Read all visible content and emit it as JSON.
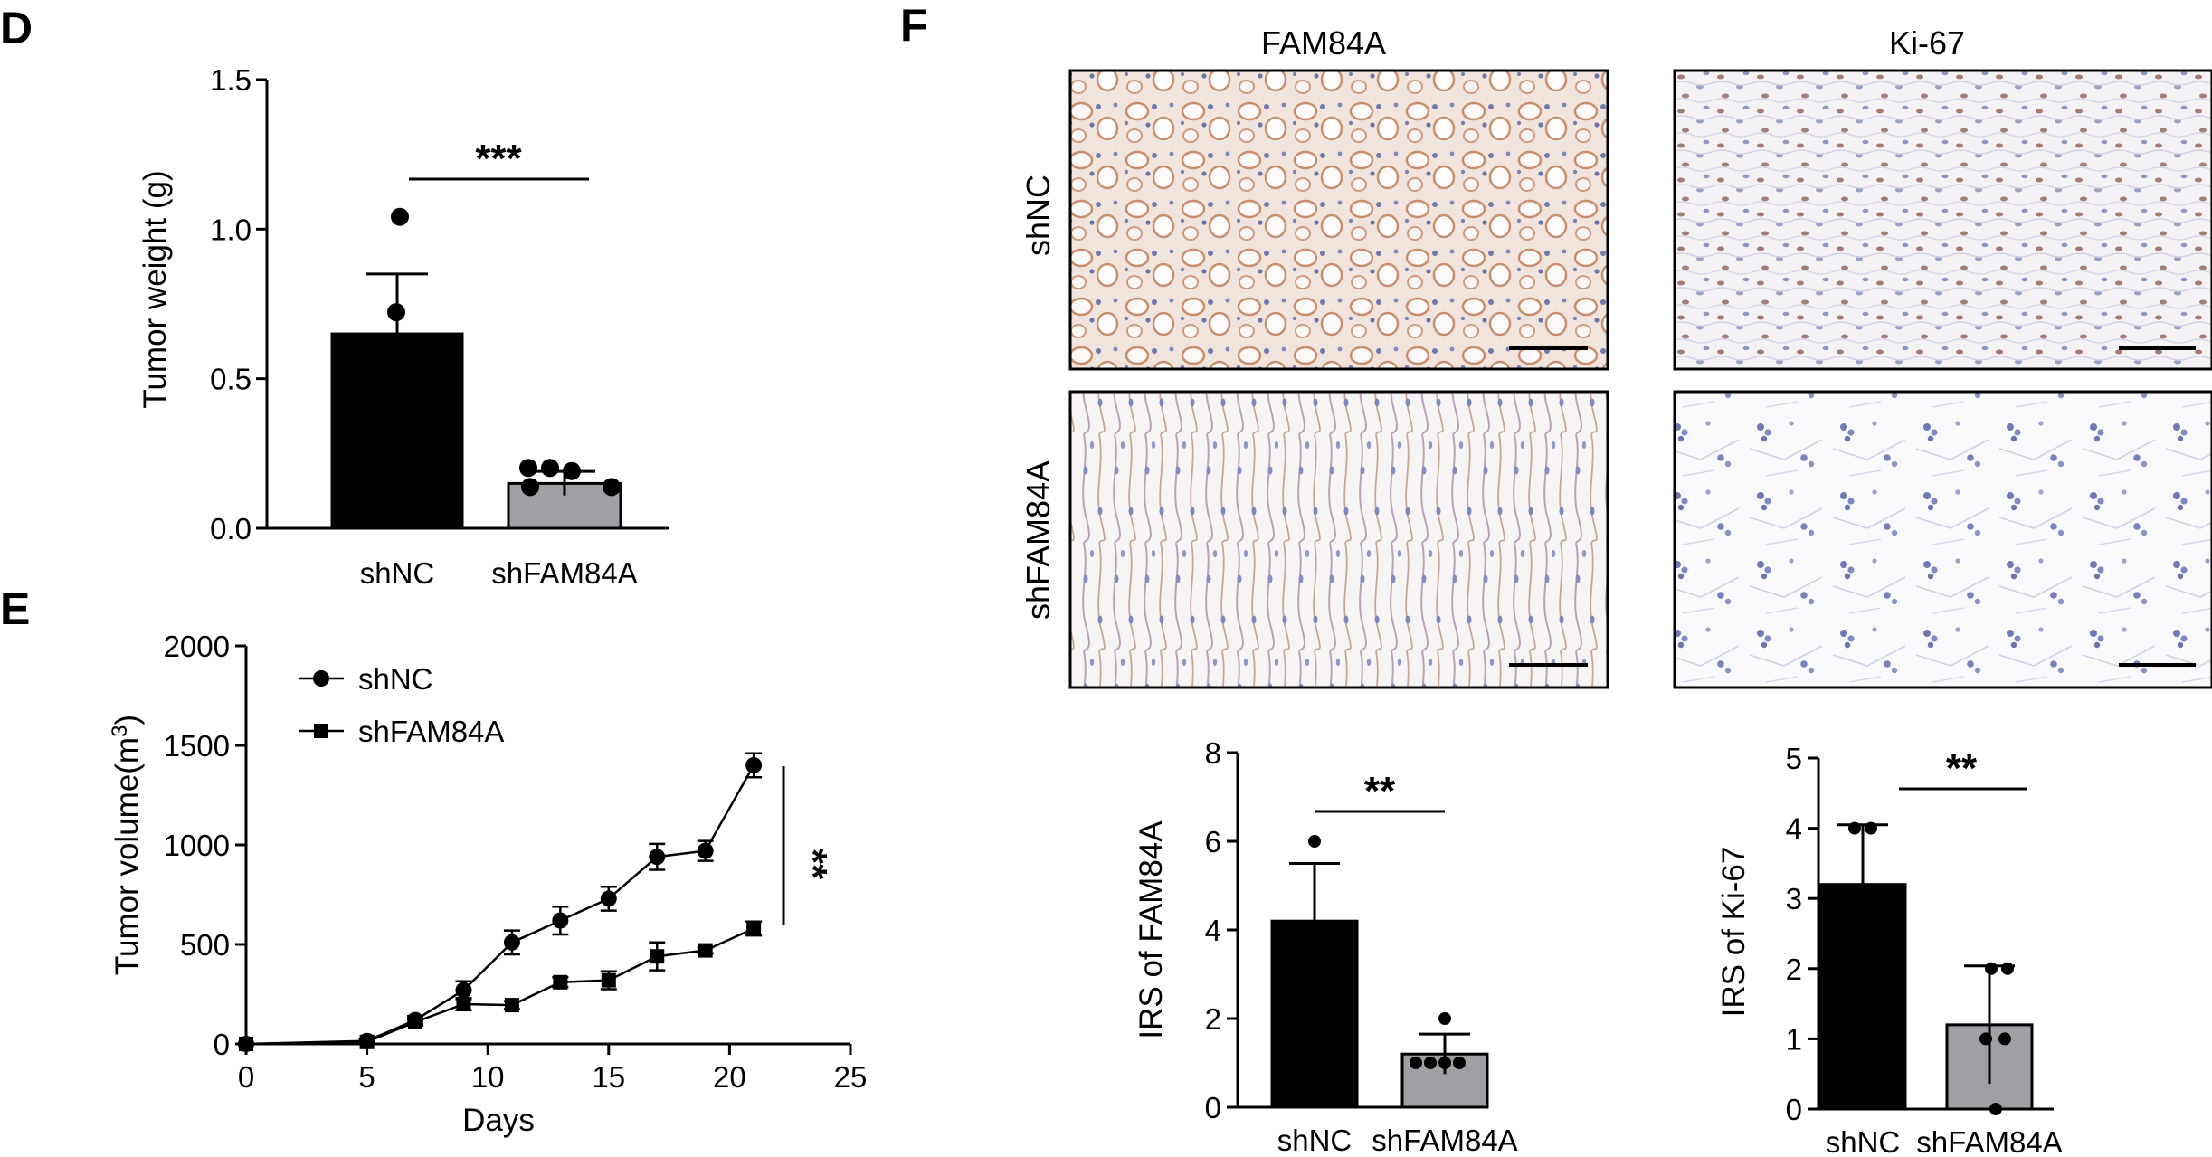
{
  "panels": {
    "d": "D",
    "e": "E",
    "f": "F"
  },
  "colors": {
    "black_bar": "#000000",
    "gray_bar": "#a0a0a4",
    "axis": "#000000"
  },
  "panel_f": {
    "column_labels": [
      "FAM84A",
      "Ki-67"
    ],
    "row_labels": [
      "shNC",
      "shFAM84A"
    ]
  },
  "chart_data": [
    {
      "id": "D",
      "type": "bar",
      "title": "",
      "xlabel": "",
      "ylabel": "Tumor weight (g)",
      "categories": [
        "shNC",
        "shFAM84A"
      ],
      "values": [
        0.65,
        0.15
      ],
      "errors": [
        0.2,
        0.04
      ],
      "points": [
        [
          0.98,
          0.68
        ],
        [
          0.19,
          0.19,
          0.18,
          0.13,
          0.13
        ]
      ],
      "ylim": [
        0,
        1.5
      ],
      "yticks": [
        0.0,
        0.5,
        1.0,
        1.5
      ],
      "ytick_labels": [
        "0.0",
        "0.5",
        "1.0",
        "1.5"
      ],
      "significance": "***"
    },
    {
      "id": "E",
      "type": "line",
      "xlabel": "Days",
      "ylabel_main": "Tumor volume(m",
      "ylabel_sup": "3",
      "ylabel_end": ")",
      "x": [
        0,
        5,
        7,
        9,
        11,
        13,
        15,
        17,
        19,
        21
      ],
      "xlim": [
        0,
        25
      ],
      "xticks": [
        0,
        5,
        10,
        15,
        20,
        25
      ],
      "ylim": [
        0,
        2000
      ],
      "yticks": [
        0,
        500,
        1000,
        1500,
        2000
      ],
      "series": [
        {
          "name": "shNC",
          "marker": "circle",
          "values": [
            0,
            15,
            120,
            270,
            510,
            620,
            730,
            940,
            970,
            1400
          ],
          "errors": [
            0,
            10,
            20,
            45,
            60,
            70,
            60,
            65,
            50,
            60
          ]
        },
        {
          "name": "shFAM84A",
          "marker": "square",
          "values": [
            0,
            10,
            110,
            200,
            195,
            310,
            320,
            440,
            470,
            580
          ],
          "errors": [
            0,
            8,
            18,
            30,
            20,
            25,
            45,
            70,
            15,
            35
          ]
        }
      ],
      "significance": "**"
    },
    {
      "id": "F-FAM84A",
      "type": "bar",
      "ylabel": "IRS of FAM84A",
      "categories": [
        "shNC",
        "shFAM84A"
      ],
      "values": [
        4.2,
        1.2
      ],
      "errors": [
        1.3,
        0.45
      ],
      "points": [
        [
          6.0,
          3.0
        ],
        [
          2.0,
          1.0,
          1.0,
          1.0,
          1.0
        ]
      ],
      "ylim": [
        0,
        8
      ],
      "yticks": [
        0,
        2,
        4,
        6,
        8
      ],
      "significance": "**"
    },
    {
      "id": "F-Ki67",
      "type": "bar",
      "ylabel": "IRS of Ki-67",
      "categories": [
        "shNC",
        "shFAM84A"
      ],
      "values": [
        3.2,
        1.2
      ],
      "errors": [
        0.85,
        0.84
      ],
      "points": [
        [
          4.0,
          4.0
        ],
        [
          2.0,
          2.0,
          1.0,
          1.0,
          0.0
        ]
      ],
      "ylim": [
        0,
        5
      ],
      "yticks": [
        0,
        1,
        2,
        3,
        4,
        5
      ],
      "significance": "**"
    }
  ]
}
